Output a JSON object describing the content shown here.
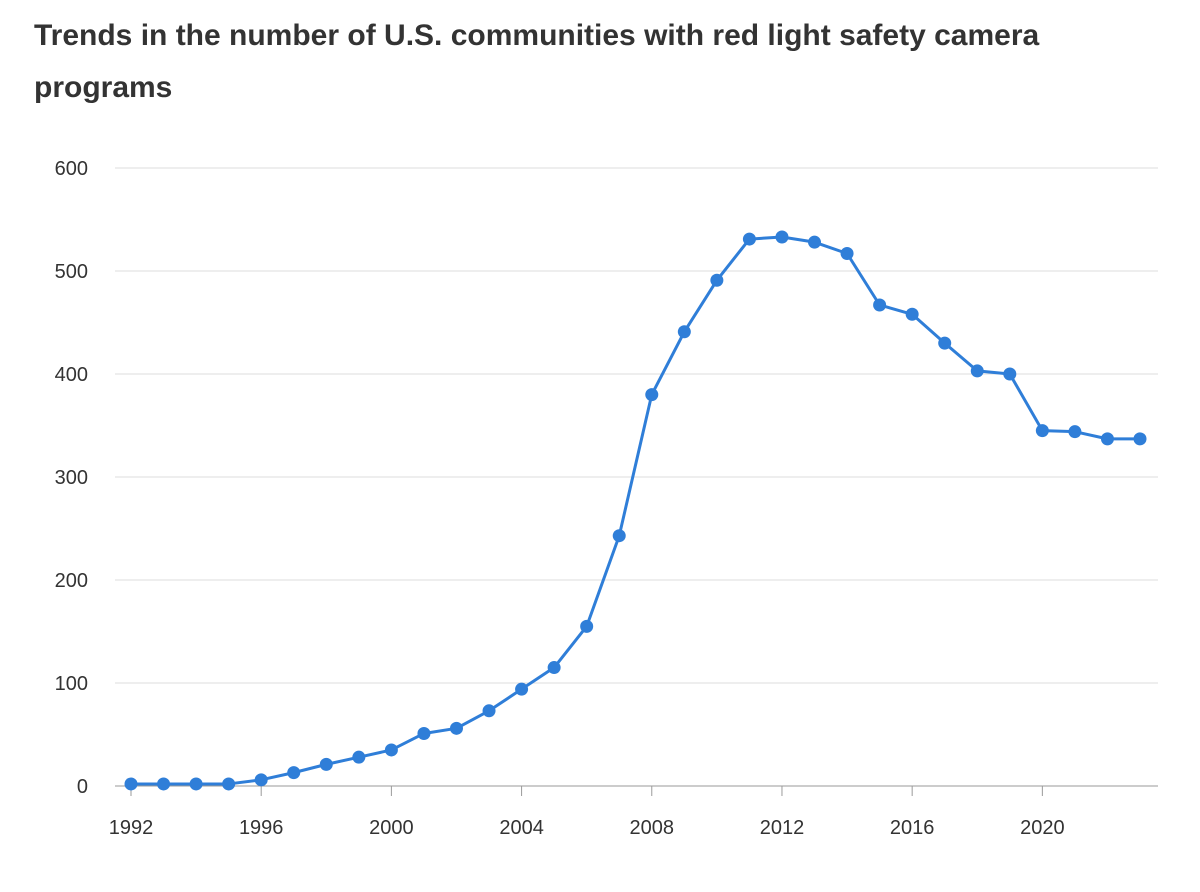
{
  "title": "Trends in the number of U.S. communities with red light safety camera programs",
  "colors": {
    "series": "#2f7ed8",
    "grid": "#dddddd",
    "axis": "#9a9a9a",
    "text": "#333333"
  },
  "chart_data": {
    "type": "line",
    "title": "Trends in the number of U.S. communities with red light safety camera programs",
    "xlabel": "",
    "ylabel": "",
    "xlim": [
      1992,
      2023
    ],
    "ylim": [
      0,
      600
    ],
    "x_ticks": [
      1992,
      1996,
      2000,
      2004,
      2008,
      2012,
      2016,
      2020
    ],
    "y_ticks": [
      0,
      100,
      200,
      300,
      400,
      500,
      600
    ],
    "grid": true,
    "legend": "none",
    "x": [
      1992,
      1993,
      1994,
      1995,
      1996,
      1997,
      1998,
      1999,
      2000,
      2001,
      2002,
      2003,
      2004,
      2005,
      2006,
      2007,
      2008,
      2009,
      2010,
      2011,
      2012,
      2013,
      2014,
      2015,
      2016,
      2017,
      2018,
      2019,
      2020,
      2021,
      2022,
      2023
    ],
    "series": [
      {
        "values": [
          2,
          2,
          2,
          2,
          6,
          13,
          21,
          28,
          35,
          51,
          56,
          73,
          94,
          115,
          155,
          243,
          380,
          441,
          491,
          531,
          533,
          528,
          517,
          467,
          458,
          430,
          403,
          400,
          345,
          344,
          337,
          337
        ]
      }
    ]
  }
}
